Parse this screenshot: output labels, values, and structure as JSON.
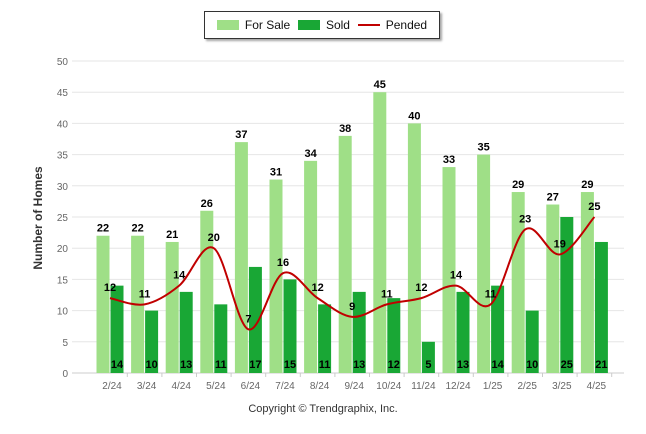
{
  "legend": {
    "for_sale": "For Sale",
    "sold": "Sold",
    "pended": "Pended"
  },
  "footer": {
    "copyright": "Copyright © Trendgraphix, Inc."
  },
  "colors": {
    "for_sale": "#9fdf87",
    "sold": "#19a735",
    "pended": "#c00000",
    "grid": "#e6e6e6",
    "axis_text": "#666666"
  },
  "chart_data": {
    "type": "bar",
    "ylabel": "Number of Homes",
    "xlabel": "",
    "ylim": [
      0,
      50
    ],
    "yticks": [
      0,
      5,
      10,
      15,
      20,
      25,
      30,
      35,
      40,
      45,
      50
    ],
    "categories": [
      "2/24",
      "3/24",
      "4/24",
      "5/24",
      "6/24",
      "7/24",
      "8/24",
      "9/24",
      "10/24",
      "11/24",
      "12/24",
      "1/25",
      "2/25",
      "3/25",
      "4/25"
    ],
    "series": [
      {
        "name": "For Sale",
        "type": "bar",
        "values": [
          22,
          22,
          21,
          26,
          37,
          31,
          34,
          38,
          45,
          40,
          33,
          35,
          29,
          27,
          29
        ]
      },
      {
        "name": "Sold",
        "type": "bar",
        "values": [
          14,
          10,
          13,
          11,
          17,
          15,
          11,
          13,
          12,
          5,
          13,
          14,
          10,
          25,
          21
        ]
      },
      {
        "name": "Pended",
        "type": "line",
        "values": [
          12,
          11,
          14,
          20,
          7,
          16,
          12,
          9,
          11,
          12,
          14,
          11,
          23,
          19,
          25
        ]
      }
    ],
    "grid": true,
    "legend_position": "top-center"
  }
}
